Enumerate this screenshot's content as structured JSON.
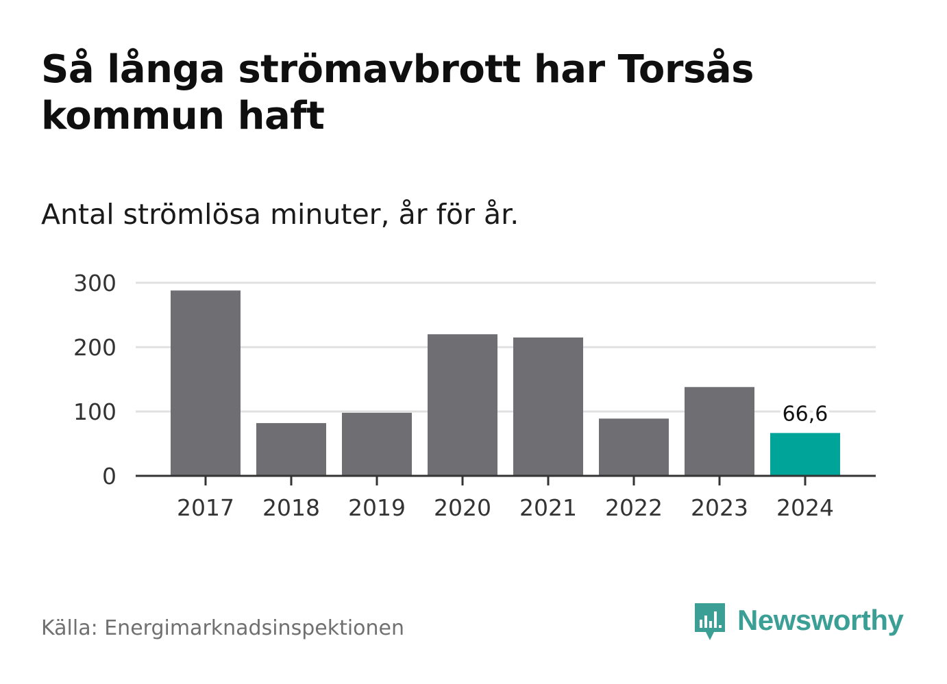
{
  "header": {
    "title": "Så långa strömavbrott har Torsås kommun haft",
    "subtitle": "Antal strömlösa minuter, år för år."
  },
  "footer": {
    "source": "Källa: Energimarknadsinspektionen",
    "brand": "Newsworthy"
  },
  "colors": {
    "bar_default": "#6f6e73",
    "bar_highlight": "#00a499",
    "gridline": "#e0e0e0",
    "axis": "#333333",
    "brand": "#3b9f95"
  },
  "icons": {
    "logo": "bar-chart-speech-bubble-icon"
  },
  "chart_data": {
    "type": "bar",
    "categories": [
      "2017",
      "2018",
      "2019",
      "2020",
      "2021",
      "2022",
      "2023",
      "2024"
    ],
    "values": [
      288,
      82,
      98,
      220,
      215,
      89,
      138,
      66.6
    ],
    "highlight_index": 7,
    "data_labels": [
      null,
      null,
      null,
      null,
      null,
      null,
      null,
      "66,6"
    ],
    "title": "Så långa strömavbrott har Torsås kommun haft",
    "subtitle": "Antal strömlösa minuter, år för år.",
    "xlabel": "",
    "ylabel": "",
    "ylim": [
      0,
      300
    ],
    "yticks": [
      0,
      100,
      200,
      300
    ],
    "grid": true,
    "legend": "none"
  }
}
